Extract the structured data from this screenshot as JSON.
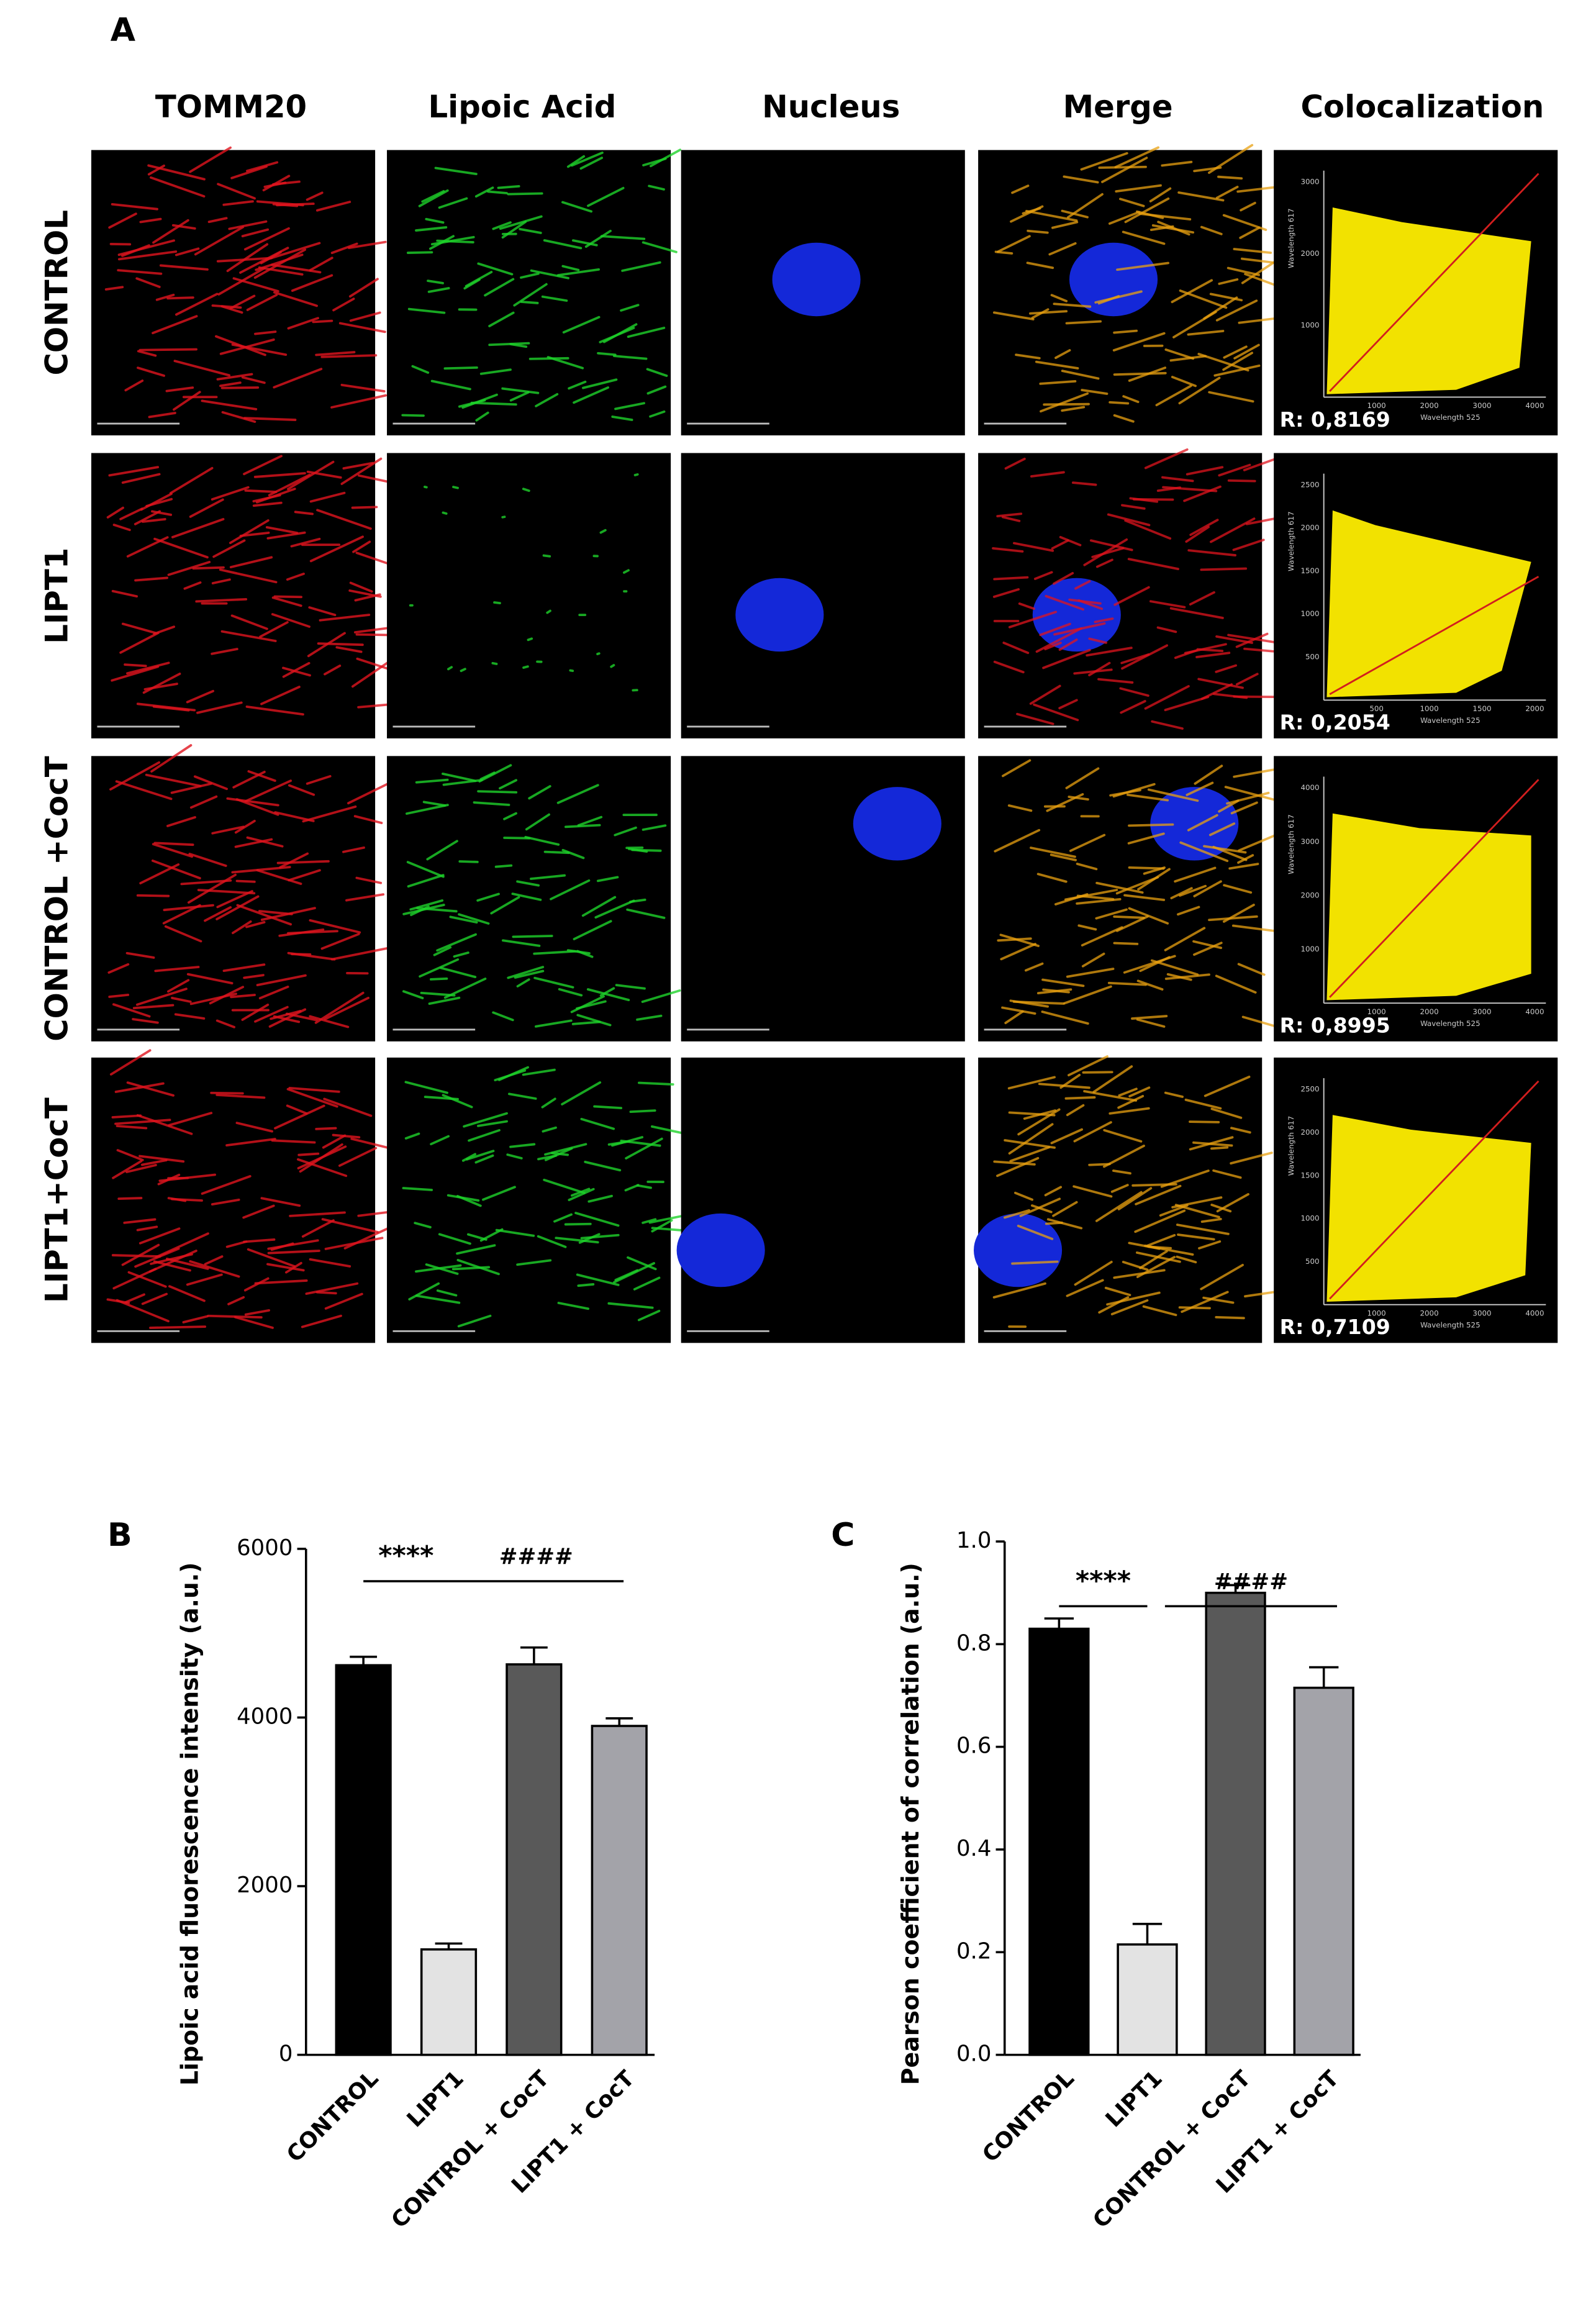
{
  "figure_a": {
    "label": "A",
    "columns": [
      "TOMM20",
      "Lipoic Acid",
      "Nucleus",
      "Merge",
      "Colocalization"
    ],
    "rows": [
      {
        "label": "CONTROL",
        "colocalization": {
          "r": "R: 0,8169",
          "x_label": "Wavelength 525",
          "y_label": "Wavelength 617",
          "xticks": [
            "1000",
            "2000",
            "3000",
            "4000"
          ],
          "yticks": [
            "1000",
            "2000",
            "3000"
          ]
        }
      },
      {
        "label": "LIPT1",
        "colocalization": {
          "r": "R: 0,2054",
          "x_label": "Wavelength 525",
          "y_label": "Wavelength 617",
          "xticks": [
            "500",
            "1000",
            "1500",
            "2000"
          ],
          "yticks": [
            "500",
            "1000",
            "1500",
            "2000",
            "2500"
          ]
        }
      },
      {
        "label": "CONTROL +CocT",
        "colocalization": {
          "r": "R: 0,8995",
          "x_label": "Wavelength 525",
          "y_label": "Wavelength 617",
          "xticks": [
            "1000",
            "2000",
            "3000",
            "4000"
          ],
          "yticks": [
            "1000",
            "2000",
            "3000",
            "4000"
          ]
        }
      },
      {
        "label": "LIPT1+CocT",
        "colocalization": {
          "r": "R: 0,7109",
          "x_label": "Wavelength 525",
          "y_label": "Wavelength 617",
          "xticks": [
            "1000",
            "2000",
            "3000",
            "4000"
          ],
          "yticks": [
            "500",
            "1000",
            "1500",
            "2000",
            "2500"
          ]
        }
      }
    ]
  },
  "chart_data": [
    {
      "type": "bar",
      "panel_label": "B",
      "y_label": "Lipoic acid fluorescence intensity (a.u.)",
      "categories": [
        "CONTROL",
        "LIPT1",
        "CONTROL + CocT",
        "LIPT1 + CocT"
      ],
      "values": [
        4620,
        1250,
        4630,
        3900
      ],
      "errors": [
        100,
        70,
        200,
        90
      ],
      "colors": [
        "#000000",
        "#e3e3e3",
        "#595959",
        "#a3a3a9"
      ],
      "ylim": [
        0,
        6000
      ],
      "yticks": [
        0,
        2000,
        4000,
        6000
      ],
      "annotations": [
        "****",
        "####"
      ]
    },
    {
      "type": "bar",
      "panel_label": "C",
      "y_label": "Pearson coefficient of correlation (a.u.)",
      "categories": [
        "CONTROL",
        "LIPT1",
        "CONTROL + CocT",
        "LIPT1 + CocT"
      ],
      "values": [
        0.83,
        0.215,
        0.9,
        0.715
      ],
      "errors": [
        0.02,
        0.04,
        0.015,
        0.04
      ],
      "colors": [
        "#000000",
        "#e3e3e3",
        "#595959",
        "#a3a3a9"
      ],
      "ylim": [
        0,
        1
      ],
      "yticks": [
        {
          "value": 0,
          "label": "0.0"
        },
        0.2,
        0.4,
        0.6,
        0.8,
        {
          "value": 1,
          "label": "1.0"
        }
      ],
      "annotations": [
        "****",
        "####"
      ]
    }
  ]
}
